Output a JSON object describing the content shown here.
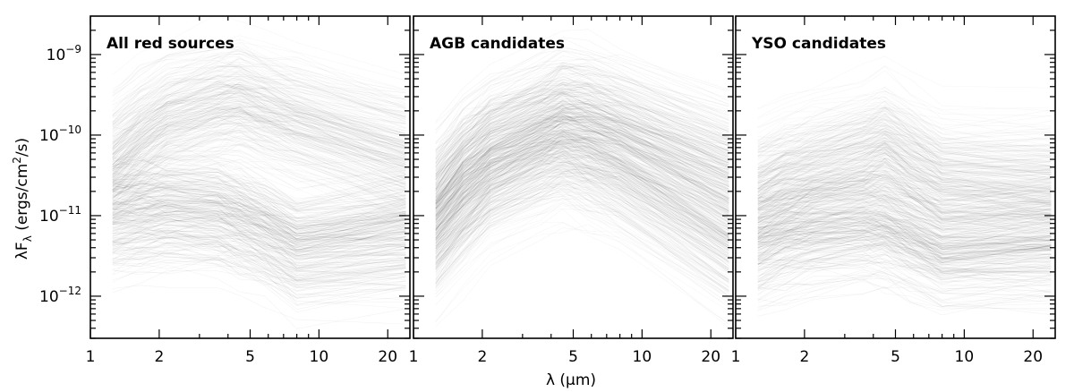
{
  "chart_data": [
    {
      "type": "line",
      "title": "All red sources",
      "x_scale": "log",
      "y_scale": "log",
      "xlim": [
        1,
        25
      ],
      "ylim": [
        3e-13,
        3e-09
      ],
      "x_ticks": [
        1,
        2,
        5,
        10,
        20
      ],
      "x_tick_labels": [
        "1",
        "2",
        "5",
        "10",
        "20"
      ],
      "y_ticks": [
        1e-12,
        1e-11,
        1e-10,
        1e-09
      ],
      "wavelengths": [
        1.25,
        1.65,
        2.17,
        3.6,
        4.5,
        5.8,
        8.0,
        24.0
      ],
      "density_ridges": [
        {
          "x": [
            1.25,
            1.65,
            2.17,
            3.6,
            4.5,
            5.8,
            8.0,
            24.0
          ],
          "y": [
            1e-11,
            1.1e-11,
            1.2e-11,
            1.1e-11,
            9e-12,
            6.5e-12,
            4e-12,
            6e-12
          ]
        },
        {
          "x": [
            1.25,
            1.65,
            2.17,
            3.6,
            4.5,
            5.8,
            8.0,
            24.0
          ],
          "y": [
            5e-11,
            1e-10,
            1.7e-10,
            2.6e-10,
            2.8e-10,
            2.2e-10,
            1.6e-10,
            6e-11
          ]
        }
      ]
    },
    {
      "type": "line",
      "title": "AGB candidates",
      "x_scale": "log",
      "y_scale": "log",
      "xlim": [
        1,
        25
      ],
      "ylim": [
        3e-13,
        3e-09
      ],
      "x_ticks": [
        1,
        2,
        5,
        10,
        20
      ],
      "x_tick_labels": [
        "1",
        "2",
        "5",
        "10",
        "20"
      ],
      "y_ticks": [
        1e-12,
        1e-11,
        1e-10,
        1e-09
      ],
      "wavelengths": [
        1.25,
        1.65,
        2.17,
        3.6,
        4.5,
        5.8,
        8.0,
        24.0
      ],
      "density_ridges": [
        {
          "x": [
            1.25,
            1.65,
            2.17,
            3.6,
            4.5,
            5.8,
            8.0,
            24.0
          ],
          "y": [
            1.5e-11,
            4e-11,
            8e-11,
            1.5e-10,
            2e-10,
            1.8e-10,
            1.3e-10,
            3.5e-11
          ]
        },
        {
          "x": [
            1.25,
            1.65,
            2.17,
            3.6,
            4.5,
            5.8,
            8.0,
            24.0
          ],
          "y": [
            5e-12,
            1.2e-11,
            2.5e-11,
            5e-11,
            6e-11,
            4.5e-11,
            3e-11,
            4e-12
          ]
        }
      ]
    },
    {
      "type": "line",
      "title": "YSO candidates",
      "x_scale": "log",
      "y_scale": "log",
      "xlim": [
        1,
        25
      ],
      "ylim": [
        3e-13,
        3e-09
      ],
      "x_ticks": [
        1,
        2,
        5,
        10,
        20
      ],
      "x_tick_labels": [
        "1",
        "2",
        "5",
        "10",
        "20"
      ],
      "y_ticks": [
        1e-12,
        1e-11,
        1e-10,
        1e-09
      ],
      "wavelengths": [
        1.25,
        1.65,
        2.17,
        3.6,
        4.5,
        5.8,
        8.0,
        24.0
      ],
      "density_ridges": [
        {
          "x": [
            1.25,
            1.65,
            2.17,
            3.6,
            4.5,
            5.8,
            8.0,
            24.0
          ],
          "y": [
            5e-12,
            6.5e-12,
            7.5e-12,
            8.5e-12,
            8e-12,
            6e-12,
            4e-12,
            5e-12
          ]
        },
        {
          "x": [
            1.25,
            1.65,
            2.17,
            3.6,
            4.5,
            5.8,
            8.0,
            24.0
          ],
          "y": [
            2e-11,
            3e-11,
            4e-11,
            6e-11,
            8e-11,
            5e-11,
            3e-11,
            2.5e-11
          ]
        }
      ]
    }
  ],
  "axes": {
    "ylabel_main": "λF",
    "ylabel_sub": "λ",
    "ylabel_units": " (ergs/cm",
    "ylabel_sup": "2",
    "ylabel_end": "/s)",
    "xlabel": "λ (μm)",
    "y_tick_mantissa": "10",
    "y_tick_exponents": [
      "−12",
      "−11",
      "−10",
      "−9"
    ]
  },
  "colors": {
    "ink": "#000000",
    "background": "#ffffff"
  }
}
